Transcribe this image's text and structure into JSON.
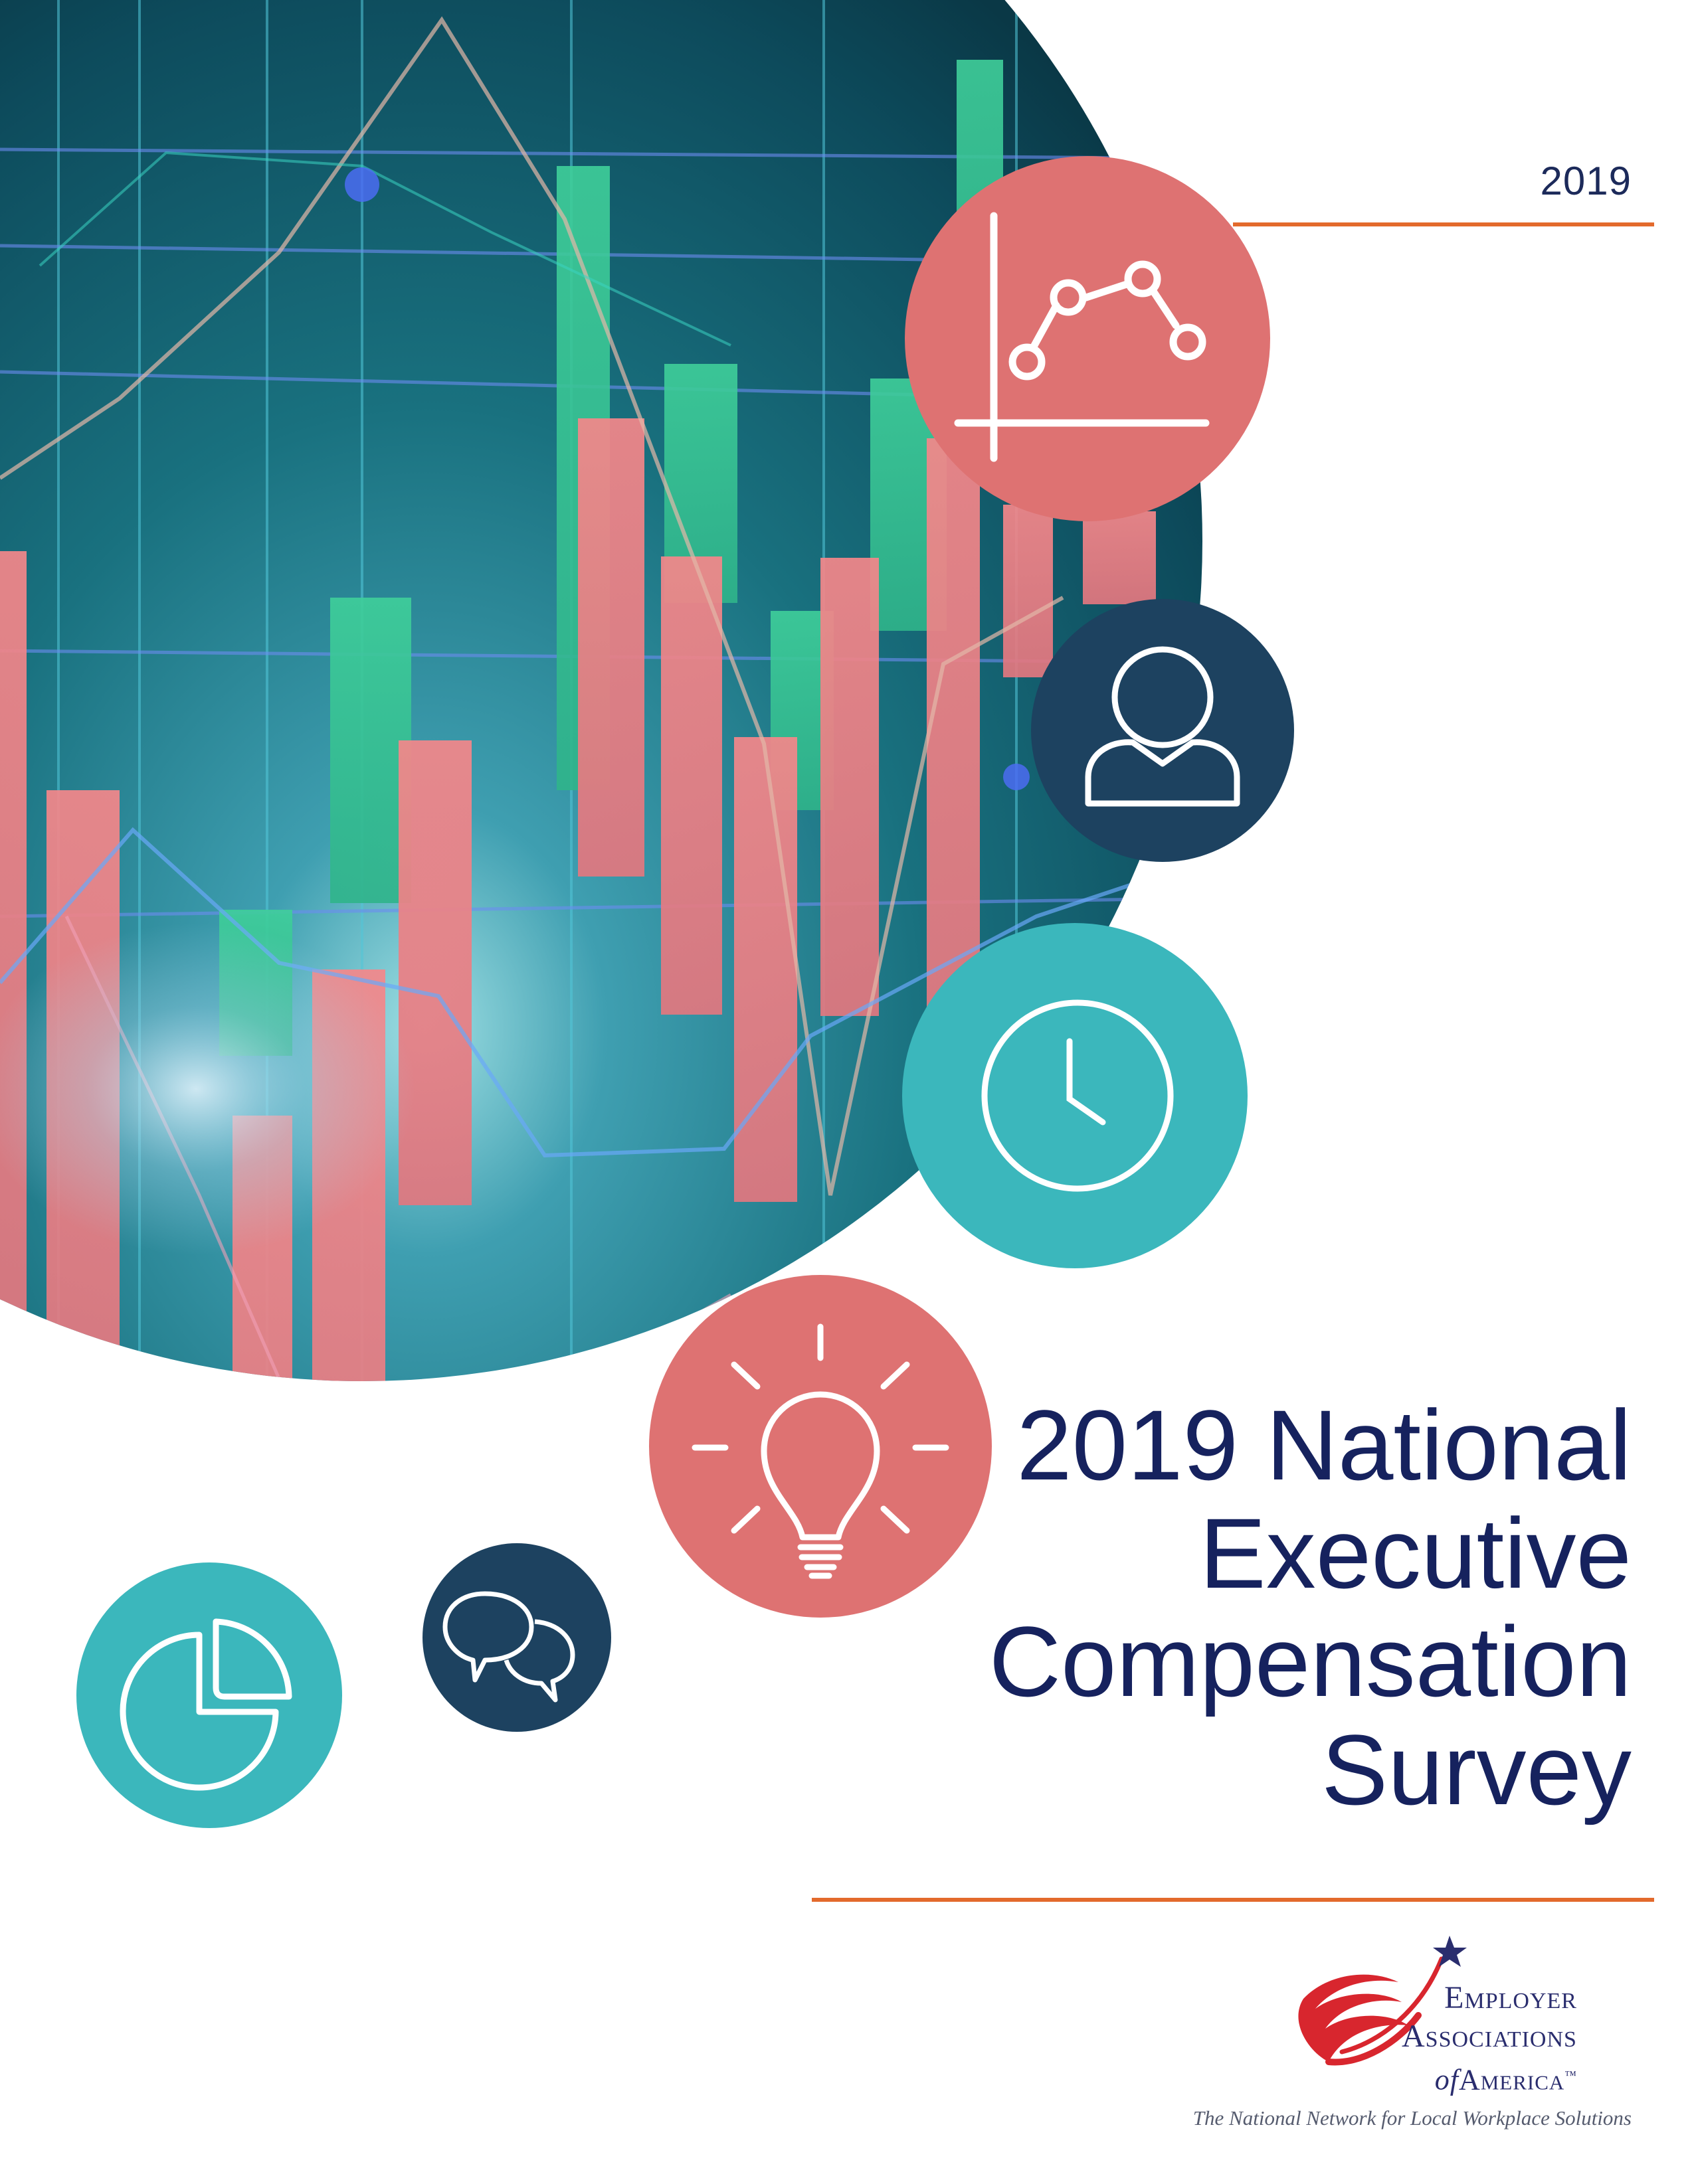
{
  "header": {
    "year": "2019"
  },
  "title": {
    "line1": "2019 National",
    "line2": "Executive",
    "line3": "Compensation",
    "line4": "Survey"
  },
  "logo": {
    "line1": "Employer",
    "line2": "Associations",
    "line3_prefix": "of",
    "line3_main": "America",
    "trademark": "™",
    "tagline": "The National Network for Local Workplace Solutions"
  },
  "icons": [
    {
      "name": "line-chart-icon",
      "color": "#de7272"
    },
    {
      "name": "person-icon",
      "color": "#1d4260"
    },
    {
      "name": "clock-icon",
      "color": "#3bb7bc"
    },
    {
      "name": "lightbulb-icon",
      "color": "#de7272"
    },
    {
      "name": "chat-bubbles-icon",
      "color": "#1d4260"
    },
    {
      "name": "pie-chart-icon",
      "color": "#3bb7bc"
    }
  ],
  "colors": {
    "title": "#16225e",
    "rule": "#e36a2c",
    "coral": "#de7272",
    "navy": "#1d4260",
    "teal": "#3bb7bc"
  }
}
